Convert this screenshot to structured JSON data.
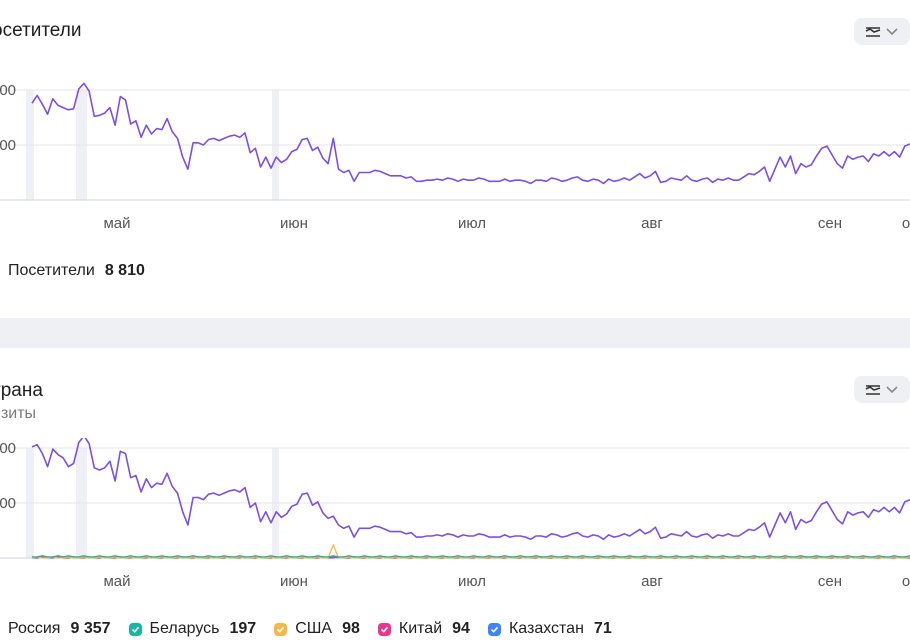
{
  "panels": [
    {
      "title": "осетители",
      "subtitle": "",
      "legend": [
        {
          "label": "Посетители",
          "value": "8 810",
          "color": "#7b4ee8"
        }
      ]
    },
    {
      "title": "трана",
      "subtitle": "изиты",
      "legend": [
        {
          "label": "Россия",
          "value": "9 357",
          "color": "#7b4ee8"
        },
        {
          "label": "Беларусь",
          "value": "197",
          "color": "#1ab5a0"
        },
        {
          "label": "США",
          "value": "98",
          "color": "#f7b84b"
        },
        {
          "label": "Китай",
          "value": "94",
          "color": "#e8358f"
        },
        {
          "label": "Казахстан",
          "value": "71",
          "color": "#3f83f8"
        }
      ]
    }
  ],
  "chart_data": [
    {
      "type": "line",
      "title": "осетители",
      "x_tick_labels": [
        "май",
        "июн",
        "июл",
        "авг",
        "сен",
        "о"
      ],
      "y_tick_labels": [
        "00",
        "00"
      ],
      "grid": true,
      "legend_position": "bottom",
      "series": [
        {
          "name": "Посетители",
          "color": "#7b4ee8",
          "values": [
            88,
            95,
            87,
            78,
            92,
            86,
            84,
            82,
            83,
            101,
            106,
            99,
            76,
            77,
            79,
            84,
            68,
            94,
            91,
            69,
            72,
            57,
            68,
            60,
            65,
            64,
            74,
            62,
            56,
            39,
            28,
            52,
            52,
            50,
            55,
            56,
            54,
            56,
            58,
            59,
            57,
            61,
            43,
            47,
            30,
            39,
            29,
            39,
            34,
            37,
            44,
            46,
            55,
            56,
            45,
            48,
            38,
            33,
            56,
            28,
            25,
            27,
            17,
            25,
            25,
            25,
            27,
            26,
            24,
            22,
            22,
            22,
            20,
            21,
            17,
            17,
            18,
            18,
            19,
            18,
            20,
            19,
            17,
            19,
            18,
            18,
            20,
            19,
            17,
            17,
            17,
            19,
            17,
            18,
            18,
            17,
            15,
            18,
            18,
            17,
            20,
            19,
            17,
            18,
            20,
            21,
            18,
            17,
            19,
            18,
            15,
            19,
            17,
            18,
            20,
            18,
            21,
            24,
            20,
            22,
            26,
            16,
            17,
            20,
            19,
            18,
            22,
            18,
            17,
            19,
            20,
            16,
            19,
            18,
            20,
            18,
            18,
            21,
            24,
            23,
            26,
            30,
            17,
            28,
            39,
            30,
            40,
            24,
            33,
            30,
            32,
            40,
            47,
            49,
            41,
            33,
            29,
            40,
            37,
            39,
            40,
            35,
            42,
            40,
            44,
            40,
            44,
            39,
            49,
            51
          ]
        }
      ]
    },
    {
      "type": "line",
      "title": "трана",
      "subtitle": "изиты",
      "x_tick_labels": [
        "май",
        "июн",
        "июл",
        "авг",
        "сен",
        "о"
      ],
      "y_tick_labels": [
        "00",
        "00"
      ],
      "grid": true,
      "legend_position": "bottom",
      "series": [
        {
          "name": "Россия",
          "color": "#7b4ee8",
          "values": [
            101,
            103,
            95,
            83,
            99,
            94,
            91,
            83,
            86,
            105,
            111,
            104,
            82,
            80,
            82,
            88,
            70,
            97,
            95,
            73,
            75,
            60,
            72,
            64,
            68,
            67,
            77,
            65,
            59,
            42,
            30,
            55,
            55,
            53,
            58,
            59,
            57,
            59,
            61,
            62,
            60,
            64,
            46,
            50,
            33,
            42,
            32,
            42,
            37,
            40,
            47,
            49,
            58,
            59,
            48,
            51,
            41,
            36,
            38,
            30,
            27,
            29,
            19,
            27,
            27,
            27,
            29,
            28,
            26,
            24,
            24,
            24,
            22,
            23,
            19,
            19,
            20,
            20,
            21,
            20,
            22,
            21,
            19,
            21,
            20,
            20,
            22,
            21,
            19,
            19,
            19,
            21,
            19,
            20,
            20,
            19,
            17,
            20,
            20,
            19,
            22,
            21,
            19,
            20,
            22,
            23,
            20,
            19,
            21,
            20,
            17,
            21,
            19,
            20,
            22,
            20,
            23,
            26,
            22,
            24,
            28,
            18,
            19,
            22,
            21,
            20,
            24,
            20,
            19,
            21,
            22,
            18,
            21,
            20,
            22,
            20,
            20,
            23,
            26,
            25,
            28,
            32,
            19,
            30,
            41,
            32,
            42,
            26,
            35,
            32,
            34,
            42,
            49,
            51,
            43,
            35,
            31,
            42,
            39,
            41,
            42,
            37,
            44,
            42,
            46,
            42,
            46,
            41,
            51,
            53
          ]
        },
        {
          "name": "Беларусь",
          "color": "#1ab5a0",
          "values": [
            1,
            1,
            2,
            1,
            1,
            2,
            1,
            2,
            1,
            1,
            2,
            1,
            1,
            2,
            1,
            1,
            2,
            1,
            1,
            2,
            1,
            1,
            2,
            1,
            1,
            2,
            1,
            1,
            2,
            1,
            1,
            2,
            1,
            1,
            2,
            1,
            1,
            2,
            1,
            1,
            2,
            1,
            1,
            2,
            1,
            1,
            2,
            1,
            1,
            2,
            1,
            1,
            2,
            1,
            1,
            2,
            1,
            1,
            2,
            1,
            1,
            2,
            1,
            1,
            2,
            1,
            1,
            2,
            1,
            1,
            2,
            1,
            1,
            2,
            1,
            1,
            2,
            1,
            1,
            2,
            1,
            1,
            2,
            1,
            1,
            2,
            1,
            1,
            2,
            1,
            1,
            2,
            1,
            1,
            2,
            1,
            1,
            2,
            1,
            1,
            2,
            1,
            1,
            2,
            1,
            1,
            2,
            1,
            1,
            2,
            1,
            1,
            2,
            1,
            1,
            2,
            1,
            1,
            2,
            1,
            1,
            2,
            1,
            1,
            2,
            1,
            1,
            2,
            1,
            1,
            2,
            1,
            1,
            2,
            1,
            1,
            2,
            1,
            1,
            2,
            1,
            1,
            2,
            1,
            1,
            2,
            1,
            1,
            2,
            1,
            1,
            2,
            1,
            1,
            2,
            1,
            1,
            2,
            1,
            1,
            2,
            1,
            1,
            2,
            1,
            1,
            2,
            1,
            1,
            2
          ]
        },
        {
          "name": "США",
          "color": "#f7b84b",
          "values": [
            0,
            1,
            0,
            0,
            1,
            0,
            0,
            1,
            0,
            0,
            1,
            0,
            0,
            1,
            0,
            0,
            1,
            0,
            0,
            1,
            0,
            0,
            1,
            0,
            0,
            1,
            0,
            0,
            1,
            0,
            0,
            1,
            0,
            0,
            1,
            0,
            0,
            1,
            0,
            0,
            1,
            0,
            0,
            1,
            0,
            0,
            1,
            0,
            0,
            1,
            0,
            0,
            1,
            0,
            0,
            1,
            0,
            0,
            12,
            0,
            0,
            1,
            0,
            0,
            1,
            0,
            0,
            1,
            0,
            0,
            1,
            0,
            0,
            1,
            0,
            0,
            1,
            0,
            0,
            1,
            0,
            0,
            1,
            0,
            0,
            1,
            0,
            0,
            1,
            0,
            0,
            1,
            0,
            0,
            1,
            0,
            0,
            1,
            0,
            0,
            1,
            0,
            0,
            1,
            0,
            0,
            1,
            0,
            0,
            1,
            0,
            0,
            1,
            0,
            0,
            1,
            0,
            0,
            1,
            0,
            0,
            1,
            0,
            0,
            1,
            0,
            0,
            1,
            0,
            0,
            1,
            0,
            0,
            1,
            0,
            0,
            1,
            0,
            0,
            1,
            0,
            0,
            1,
            0,
            0,
            1,
            0,
            0,
            1,
            0,
            0,
            1,
            0,
            0,
            1,
            0,
            0,
            1,
            0,
            0,
            1,
            0,
            0,
            1,
            0,
            0,
            1,
            0,
            0,
            1
          ]
        },
        {
          "name": "Китай",
          "color": "#e8358f",
          "values": [
            0,
            0,
            1,
            0,
            0,
            1,
            0,
            0,
            1,
            0,
            0,
            1,
            0,
            0,
            1,
            0,
            0,
            1,
            0,
            0,
            1,
            0,
            0,
            1,
            0,
            0,
            1,
            0,
            0,
            1,
            0,
            0,
            1,
            0,
            0,
            1,
            0,
            0,
            1,
            0,
            0,
            1,
            0,
            0,
            1,
            0,
            0,
            1,
            0,
            0,
            1,
            0,
            0,
            1,
            0,
            0,
            1,
            0,
            0,
            1,
            0,
            0,
            1,
            0,
            0,
            1,
            0,
            0,
            1,
            0,
            0,
            1,
            0,
            0,
            1,
            0,
            0,
            1,
            0,
            0,
            1,
            0,
            0,
            1,
            0,
            0,
            1,
            0,
            0,
            1,
            0,
            0,
            1,
            0,
            0,
            1,
            0,
            0,
            1,
            0,
            0,
            1,
            0,
            0,
            1,
            0,
            0,
            1,
            0,
            0,
            1,
            0,
            0,
            1,
            0,
            0,
            1,
            0,
            0,
            1,
            0,
            0,
            1,
            0,
            0,
            1,
            0,
            0,
            1,
            0,
            0,
            1,
            0,
            0,
            1,
            0,
            0,
            1,
            0,
            0,
            1,
            0,
            0,
            1,
            0,
            0,
            1,
            0,
            0,
            1,
            0,
            0,
            1,
            0,
            0,
            1,
            0,
            0,
            1,
            0,
            0,
            1,
            0,
            0,
            1,
            0,
            0,
            1,
            0,
            0
          ]
        },
        {
          "name": "Казахстан",
          "color": "#3f83f8",
          "values": [
            1,
            0,
            1,
            0,
            1,
            0,
            1,
            0,
            1,
            0,
            1,
            0,
            1,
            0,
            1,
            0,
            1,
            0,
            1,
            0,
            1,
            0,
            1,
            0,
            1,
            0,
            1,
            0,
            1,
            0,
            1,
            0,
            1,
            0,
            1,
            0,
            1,
            0,
            1,
            0,
            1,
            0,
            1,
            0,
            1,
            0,
            1,
            0,
            1,
            0,
            1,
            0,
            1,
            0,
            1,
            0,
            1,
            0,
            1,
            0,
            1,
            0,
            1,
            0,
            1,
            0,
            1,
            0,
            1,
            0,
            1,
            0,
            1,
            0,
            1,
            0,
            1,
            0,
            1,
            0,
            1,
            0,
            1,
            0,
            1,
            0,
            1,
            0,
            1,
            0,
            1,
            0,
            1,
            0,
            1,
            0,
            1,
            0,
            1,
            0,
            1,
            0,
            1,
            0,
            1,
            0,
            1,
            0,
            1,
            0,
            1,
            0,
            1,
            0,
            1,
            0,
            1,
            0,
            1,
            0,
            1,
            0,
            1,
            0,
            1,
            0,
            1,
            0,
            1,
            0,
            1,
            0,
            1,
            0,
            1,
            0,
            1,
            0,
            1,
            0,
            1,
            0,
            1,
            0,
            1,
            0,
            1,
            0,
            1,
            0,
            1,
            0,
            1,
            0,
            1,
            0,
            1,
            0,
            1,
            0,
            1,
            0,
            1,
            0,
            1,
            0,
            1,
            0,
            1,
            0
          ]
        }
      ]
    }
  ]
}
